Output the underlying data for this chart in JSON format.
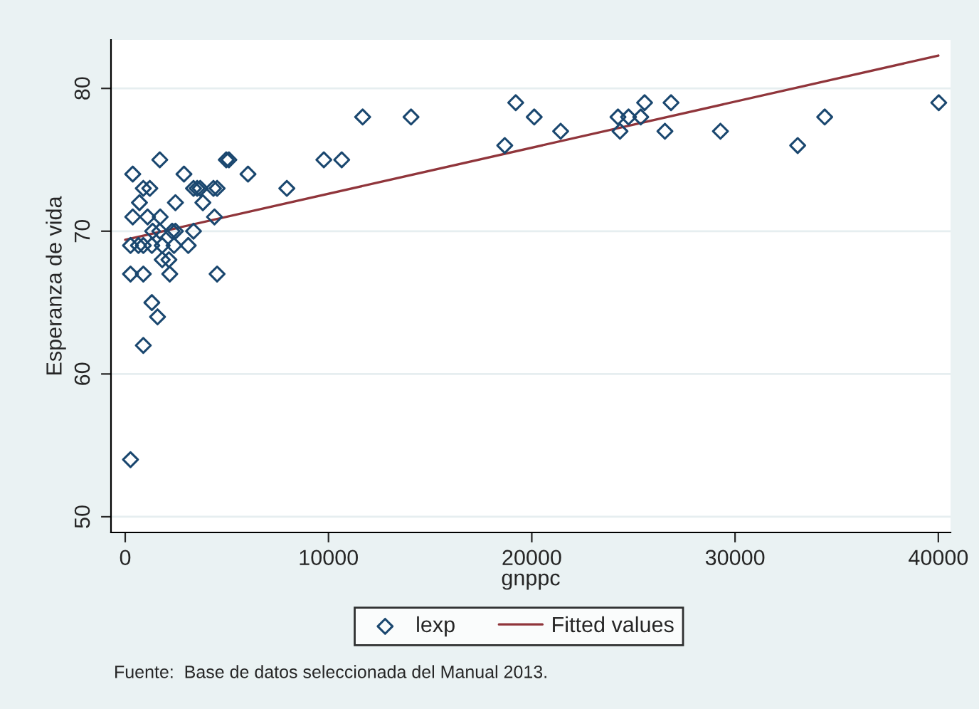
{
  "chart_data": {
    "type": "scatter",
    "xlabel": "gnppc",
    "ylabel": "Esperanza de vida",
    "annotations": [
      "Fuente:  Base de datos seleccionada del Manual 2013."
    ],
    "xlim": [
      -700,
      40600
    ],
    "ylim": [
      48.9,
      83.4
    ],
    "xticks": [
      0,
      10000,
      20000,
      30000,
      40000
    ],
    "yticks": [
      50,
      60,
      70,
      80
    ],
    "grid": "y",
    "legend": "bottom",
    "series": [
      {
        "name": "lexp",
        "marker": "diamond",
        "color": "#1a476f",
        "x": [
          11680,
          9770,
          10650,
          14060,
          18670,
          19210,
          20120,
          21420,
          24240,
          24340,
          24760,
          25360,
          25550,
          26550,
          26850,
          29280,
          33080,
          34410,
          40020,
          1700,
          4970,
          5100,
          370,
          2890,
          6040,
          890,
          1210,
          3360,
          3540,
          3690,
          4340,
          4520,
          7950,
          700,
          2470,
          3820,
          370,
          1100,
          1720,
          4390,
          1350,
          1700,
          2310,
          2470,
          3360,
          260,
          650,
          890,
          1310,
          1820,
          2400,
          3100,
          1820,
          2150,
          260,
          890,
          2190,
          4520,
          1310,
          1590,
          890,
          260
        ],
        "values": [
          78,
          75,
          75,
          78,
          76,
          79,
          78,
          77,
          78,
          77,
          78,
          78,
          79,
          77,
          79,
          77,
          76,
          78,
          79,
          75,
          75,
          75,
          74,
          74,
          74,
          73,
          73,
          73,
          73,
          73,
          73,
          73,
          73,
          72,
          72,
          72,
          71,
          71,
          71,
          71,
          70,
          70,
          70,
          70,
          70,
          69,
          69,
          69,
          69,
          69,
          69,
          69,
          68,
          68,
          67,
          67,
          67,
          67,
          65,
          64,
          62,
          54
        ]
      },
      {
        "name": "Fitted values",
        "type": "line",
        "marker": "none",
        "line_style": "solid",
        "color": "#90353b",
        "x": [
          0,
          40000
        ],
        "values": [
          69.4,
          82.3
        ]
      }
    ]
  }
}
